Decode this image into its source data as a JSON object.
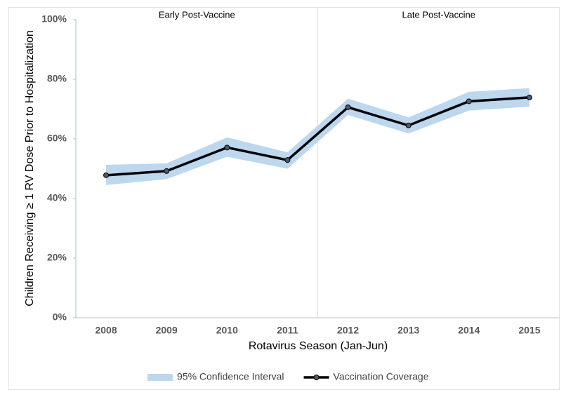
{
  "chart_data": {
    "type": "line",
    "x_label": "Rotavirus Season (Jan-Jun)",
    "y_label": "Children Receiving ≥ 1 RV Dose Prior to Hospitalization",
    "annotations": [
      "Early Post-Vaccine",
      "Late Post-Vaccine"
    ],
    "categories": [
      "2008",
      "2009",
      "2010",
      "2011",
      "2012",
      "2013",
      "2014",
      "2015"
    ],
    "ylim": [
      0,
      100
    ],
    "yticks": [
      {
        "value": 0,
        "label": "0%"
      },
      {
        "value": 20,
        "label": "20%"
      },
      {
        "value": 40,
        "label": "40%"
      },
      {
        "value": 60,
        "label": "60%"
      },
      {
        "value": 80,
        "label": "80%"
      },
      {
        "value": 100,
        "label": "100%"
      }
    ],
    "grid": false,
    "legend": "bottom",
    "series": [
      {
        "name": "95% Confidence Interval",
        "color": "#bdd7ee",
        "lower": [
          44.5,
          46.5,
          54.0,
          50.0,
          68.0,
          61.8,
          69.5,
          70.8
        ],
        "upper": [
          51.3,
          51.8,
          60.5,
          55.5,
          73.5,
          67.2,
          75.8,
          77.0
        ]
      },
      {
        "name": "Vaccination Coverage",
        "color": "#000000",
        "marker_color": "#4d5a6b",
        "values": [
          47.8,
          49.2,
          57.1,
          52.9,
          70.6,
          64.5,
          72.6,
          73.9
        ]
      }
    ]
  }
}
